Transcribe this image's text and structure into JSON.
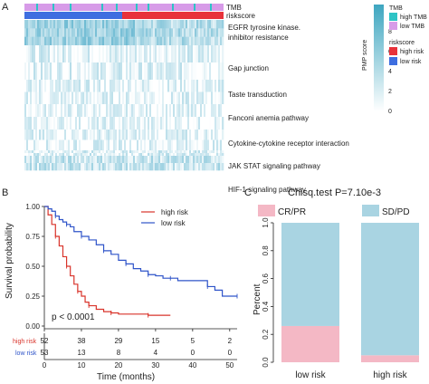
{
  "panel_a": {
    "label": "A",
    "tracks": [
      "TMB",
      "riskscore"
    ],
    "pathways": [
      "EGFR tyrosine kinase.",
      "inhibitor resistance",
      "Gap junction",
      "Taste transduction",
      "Fanconi anemia pathway",
      "Cytokine-cytokine receptor interaction",
      "JAK STAT signaling pathway",
      "HIF-1 signaling pathway"
    ],
    "colorbar": {
      "title": "PMP score",
      "ticks": [
        "8",
        "6",
        "4",
        "2",
        "0"
      ]
    },
    "legend_tmb": {
      "title": "TMB",
      "items": [
        "high TMB",
        "low TMB"
      ]
    },
    "legend_risk": {
      "title": "riskscore",
      "items": [
        "high risk",
        "low risk"
      ]
    },
    "colors": {
      "high_tmb": "#2ec4c6",
      "low_tmb": "#d79be8",
      "high_risk": "#e8323a",
      "low_risk": "#3e6ee0",
      "heat_max": "#5ab8cc",
      "heat_min": "#ffffff"
    }
  },
  "panel_b": {
    "label": "B",
    "ylabel": "Survival probability",
    "xlabel": "Time (months)",
    "pvalue": "p < 0.0001",
    "legend": [
      "high risk",
      "low risk"
    ],
    "risk_table": {
      "rows": [
        {
          "name": "high risk",
          "values": [
            "52",
            "38",
            "29",
            "15",
            "5",
            "2"
          ]
        },
        {
          "name": "low risk",
          "values": [
            "53",
            "13",
            "8",
            "4",
            "0",
            "0"
          ]
        }
      ]
    }
  },
  "panel_c": {
    "label": "C",
    "title": "Chisq.test P=7.10e-3",
    "ylabel": "Percent",
    "legend": [
      "CR/PR",
      "SD/PD"
    ],
    "colors": {
      "cr_pr": "#f4b8c5",
      "sd_pd": "#a9d4e2"
    }
  },
  "chart_data": [
    {
      "type": "heatmap",
      "rows": [
        "EGFR tyrosine kinase. inhibitor resistance",
        "Gap junction",
        "Taste transduction",
        "Fanconi anemia pathway",
        "Cytokine-cytokine receptor interaction",
        "JAK STAT signaling pathway",
        "HIF-1 signaling pathway"
      ],
      "annotation_tracks": [
        "TMB",
        "riskscore"
      ],
      "value_range": [
        0,
        8
      ]
    },
    {
      "type": "line",
      "title": "",
      "xlabel": "Time (months)",
      "ylabel": "Survival probability",
      "xlim": [
        0,
        52
      ],
      "ylim": [
        0,
        1
      ],
      "xticks": [
        0,
        10,
        20,
        30,
        40,
        50
      ],
      "yticks": [
        0.0,
        0.25,
        0.5,
        0.75,
        1.0
      ],
      "series": [
        {
          "name": "high risk",
          "color": "#d9342b",
          "x": [
            0,
            1,
            2,
            3,
            4,
            5,
            6,
            7,
            8,
            9,
            10,
            11,
            12,
            14,
            16,
            18,
            20,
            24,
            28,
            30,
            34
          ],
          "y": [
            1.0,
            0.93,
            0.85,
            0.75,
            0.67,
            0.58,
            0.5,
            0.42,
            0.35,
            0.29,
            0.25,
            0.2,
            0.17,
            0.14,
            0.12,
            0.11,
            0.1,
            0.1,
            0.09,
            0.09,
            0.09
          ]
        },
        {
          "name": "low risk",
          "color": "#2f54c9",
          "x": [
            0,
            1,
            2,
            3,
            4,
            5,
            6,
            7,
            8,
            10,
            12,
            14,
            16,
            18,
            20,
            22,
            24,
            26,
            28,
            30,
            32,
            34,
            36,
            40,
            44,
            46,
            48,
            52
          ],
          "y": [
            1.0,
            0.98,
            0.96,
            0.92,
            0.89,
            0.87,
            0.85,
            0.83,
            0.79,
            0.75,
            0.72,
            0.68,
            0.63,
            0.6,
            0.55,
            0.52,
            0.48,
            0.46,
            0.43,
            0.42,
            0.4,
            0.4,
            0.38,
            0.38,
            0.33,
            0.3,
            0.25,
            0.25
          ]
        }
      ],
      "annotations": [
        "p < 0.0001"
      ],
      "risk_table": {
        "times": [
          0,
          10,
          20,
          30,
          40,
          50
        ],
        "high risk": [
          52,
          38,
          29,
          15,
          5,
          2
        ],
        "low risk": [
          53,
          13,
          8,
          4,
          0,
          0
        ]
      }
    },
    {
      "type": "bar",
      "title": "Chisq.test P=7.10e-3",
      "xlabel": "",
      "ylabel": "Percent",
      "categories": [
        "low risk",
        "high risk"
      ],
      "stacked": true,
      "ylim": [
        0,
        1
      ],
      "yticks": [
        0.0,
        0.2,
        0.4,
        0.6,
        0.8,
        1.0
      ],
      "series": [
        {
          "name": "CR/PR",
          "values": [
            0.26,
            0.05
          ]
        },
        {
          "name": "SD/PD",
          "values": [
            0.74,
            0.95
          ]
        }
      ]
    }
  ]
}
